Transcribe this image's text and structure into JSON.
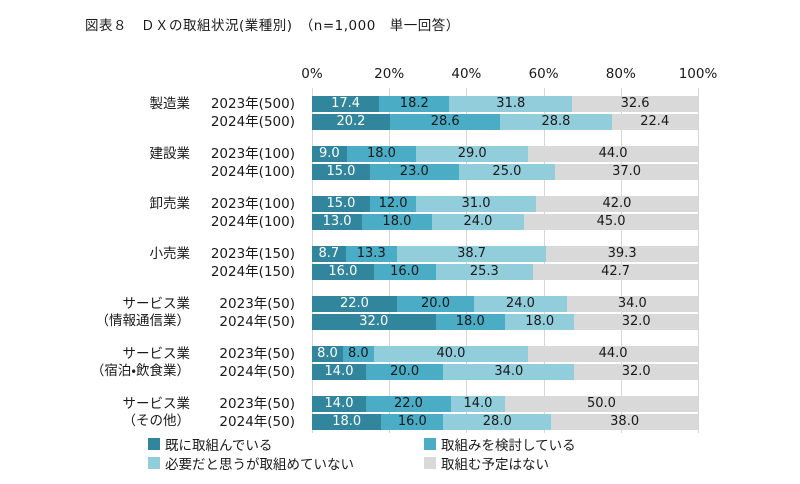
{
  "title": "図表８　ＤＸの取組状況(業種別)　（n=1,000　単一回答）",
  "chart_data": {
    "type": "bar",
    "orientation": "horizontal-stacked",
    "unit": "%",
    "xlim": [
      0,
      100
    ],
    "grid": true,
    "axis_ticks": [
      "0%",
      "20%",
      "40%",
      "60%",
      "80%",
      "100%"
    ],
    "series_labels": [
      "既に取組んでいる",
      "取組みを検討している",
      "必要だと思うが取組めていない",
      "取組む予定はない"
    ],
    "series_colors": [
      "#31859C",
      "#4BACC6",
      "#92CDDC",
      "#D9D9D9"
    ],
    "value_label_colors": [
      "#ffffff",
      "#1a1a1a",
      "#1a1a1a",
      "#1a1a1a"
    ],
    "groups": [
      {
        "category": [
          "製造業"
        ],
        "rows": [
          {
            "label": "2023年(500)",
            "values": [
              17.4,
              18.2,
              31.8,
              32.6
            ]
          },
          {
            "label": "2024年(500)",
            "values": [
              20.2,
              28.6,
              28.8,
              22.4
            ]
          }
        ]
      },
      {
        "category": [
          "建設業"
        ],
        "rows": [
          {
            "label": "2023年(100)",
            "values": [
              9.0,
              18.0,
              29.0,
              44.0
            ]
          },
          {
            "label": "2024年(100)",
            "values": [
              15.0,
              23.0,
              25.0,
              37.0
            ]
          }
        ]
      },
      {
        "category": [
          "卸売業"
        ],
        "rows": [
          {
            "label": "2023年(100)",
            "values": [
              15.0,
              12.0,
              31.0,
              42.0
            ]
          },
          {
            "label": "2024年(100)",
            "values": [
              13.0,
              18.0,
              24.0,
              45.0
            ]
          }
        ]
      },
      {
        "category": [
          "小売業"
        ],
        "rows": [
          {
            "label": "2023年(150)",
            "values": [
              8.7,
              13.3,
              38.7,
              39.3
            ]
          },
          {
            "label": "2024年(150)",
            "values": [
              16.0,
              16.0,
              25.3,
              42.7
            ]
          }
        ]
      },
      {
        "category": [
          "サービス業",
          "（情報通信業）"
        ],
        "rows": [
          {
            "label": "2023年(50)",
            "values": [
              22.0,
              20.0,
              24.0,
              34.0
            ]
          },
          {
            "label": "2024年(50)",
            "values": [
              32.0,
              18.0,
              18.0,
              32.0
            ]
          }
        ]
      },
      {
        "category": [
          "サービス業",
          "（宿泊・飲食業）"
        ],
        "rows": [
          {
            "label": "2023年(50)",
            "values": [
              8.0,
              8.0,
              40.0,
              44.0
            ]
          },
          {
            "label": "2024年(50)",
            "values": [
              14.0,
              20.0,
              34.0,
              32.0
            ]
          }
        ]
      },
      {
        "category": [
          "サービス業",
          "（その他）"
        ],
        "rows": [
          {
            "label": "2023年(50)",
            "values": [
              14.0,
              22.0,
              14.0,
              50.0
            ]
          },
          {
            "label": "2024年(50)",
            "values": [
              18.0,
              16.0,
              28.0,
              38.0
            ]
          }
        ]
      }
    ],
    "legend": [
      {
        "label": "既に取組んでいる",
        "color": "#31859C"
      },
      {
        "label": "取組みを検討している",
        "color": "#4BACC6"
      },
      {
        "label": "必要だと思うが取組めていない",
        "color": "#92CDDC"
      },
      {
        "label": "取組む予定はない",
        "color": "#D9D9D9"
      }
    ],
    "legend_position": "bottom"
  }
}
